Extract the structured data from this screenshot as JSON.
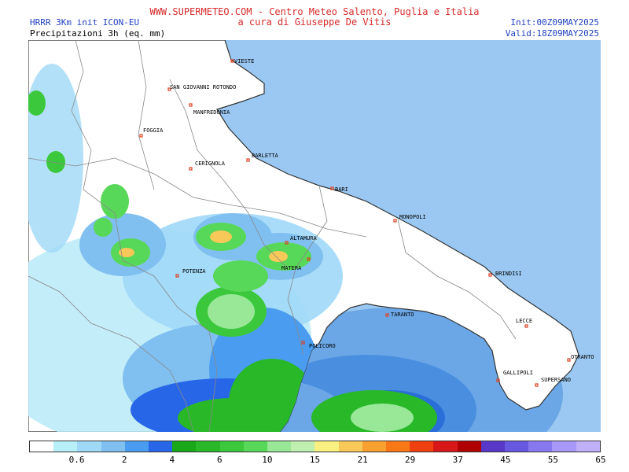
{
  "header": {
    "site_line": "WWW.SUPERMETEO.COM - Centro Meteo Salento, Puglia e Italia",
    "credit_line": "a cura di Giuseppe De Vitis",
    "model": "HRRR 3Km init ICON-EU",
    "parameter": "Precipitazioni 3h (eq. mm)",
    "init": "Init:00Z09MAY2025",
    "valid": "Valid:18Z09MAY2025"
  },
  "map": {
    "cities": [
      "VIESTE",
      "SAN GIOVANNI ROTONDO",
      "MANFREDONIA",
      "FOGGIA",
      "CERIGNOLA",
      "BARLETTA",
      "BARI",
      "MONOPOLI",
      "ALTAMURA",
      "MATERA",
      "POTENZA",
      "BRINDISI",
      "TARANTO",
      "LECCE",
      "POLICORO",
      "OTRANTO",
      "GALLIPOLI",
      "SUPERSANO"
    ],
    "colors": {
      "sea": "#6ba7e6",
      "land": "#ffffff",
      "border": "#555555",
      "city_marker": "#e04020"
    }
  },
  "legend": {
    "colors": [
      "#ffffff",
      "#b8f0f8",
      "#a0d8f8",
      "#80c0f0",
      "#4a9cf0",
      "#2866e8",
      "#18a818",
      "#28b828",
      "#3cc83c",
      "#58d858",
      "#98e898",
      "#c0f0b0",
      "#f8f080",
      "#f8c858",
      "#f8a030",
      "#f87818",
      "#f04010",
      "#d81818",
      "#b00000",
      "#5838c8",
      "#6858e0",
      "#8878f0",
      "#a898f8",
      "#c0b0f8"
    ],
    "labels": [
      {
        "text": "0.6",
        "pos": 2
      },
      {
        "text": "2",
        "pos": 4
      },
      {
        "text": "4",
        "pos": 6
      },
      {
        "text": "6",
        "pos": 8
      },
      {
        "text": "10",
        "pos": 10
      },
      {
        "text": "15",
        "pos": 12
      },
      {
        "text": "21",
        "pos": 14
      },
      {
        "text": "29",
        "pos": 16
      },
      {
        "text": "37",
        "pos": 18
      },
      {
        "text": "45",
        "pos": 20
      },
      {
        "text": "55",
        "pos": 22
      },
      {
        "text": "65",
        "pos": 24
      }
    ]
  }
}
